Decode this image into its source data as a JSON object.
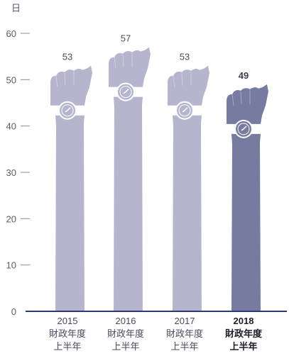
{
  "chart_data": {
    "type": "bar",
    "unit_label": "日",
    "ylim": [
      0,
      60
    ],
    "yticks": [
      0,
      10,
      20,
      30,
      40,
      50,
      60
    ],
    "categories": [
      [
        "2015",
        "財政年度",
        "上半年"
      ],
      [
        "2016",
        "財政年度",
        "上半年"
      ],
      [
        "2017",
        "財政年度",
        "上半年"
      ],
      [
        "2018",
        "財政年度",
        "上半年"
      ]
    ],
    "values": [
      53,
      57,
      53,
      49
    ],
    "highlight_index": 3,
    "colors": {
      "bar": "#b5b6ce",
      "bar_highlight": "#777b9f",
      "axis": "#2c3a7a",
      "watch": "#ffffff"
    },
    "bar_shape": "raised-fist-with-wristwatch"
  }
}
